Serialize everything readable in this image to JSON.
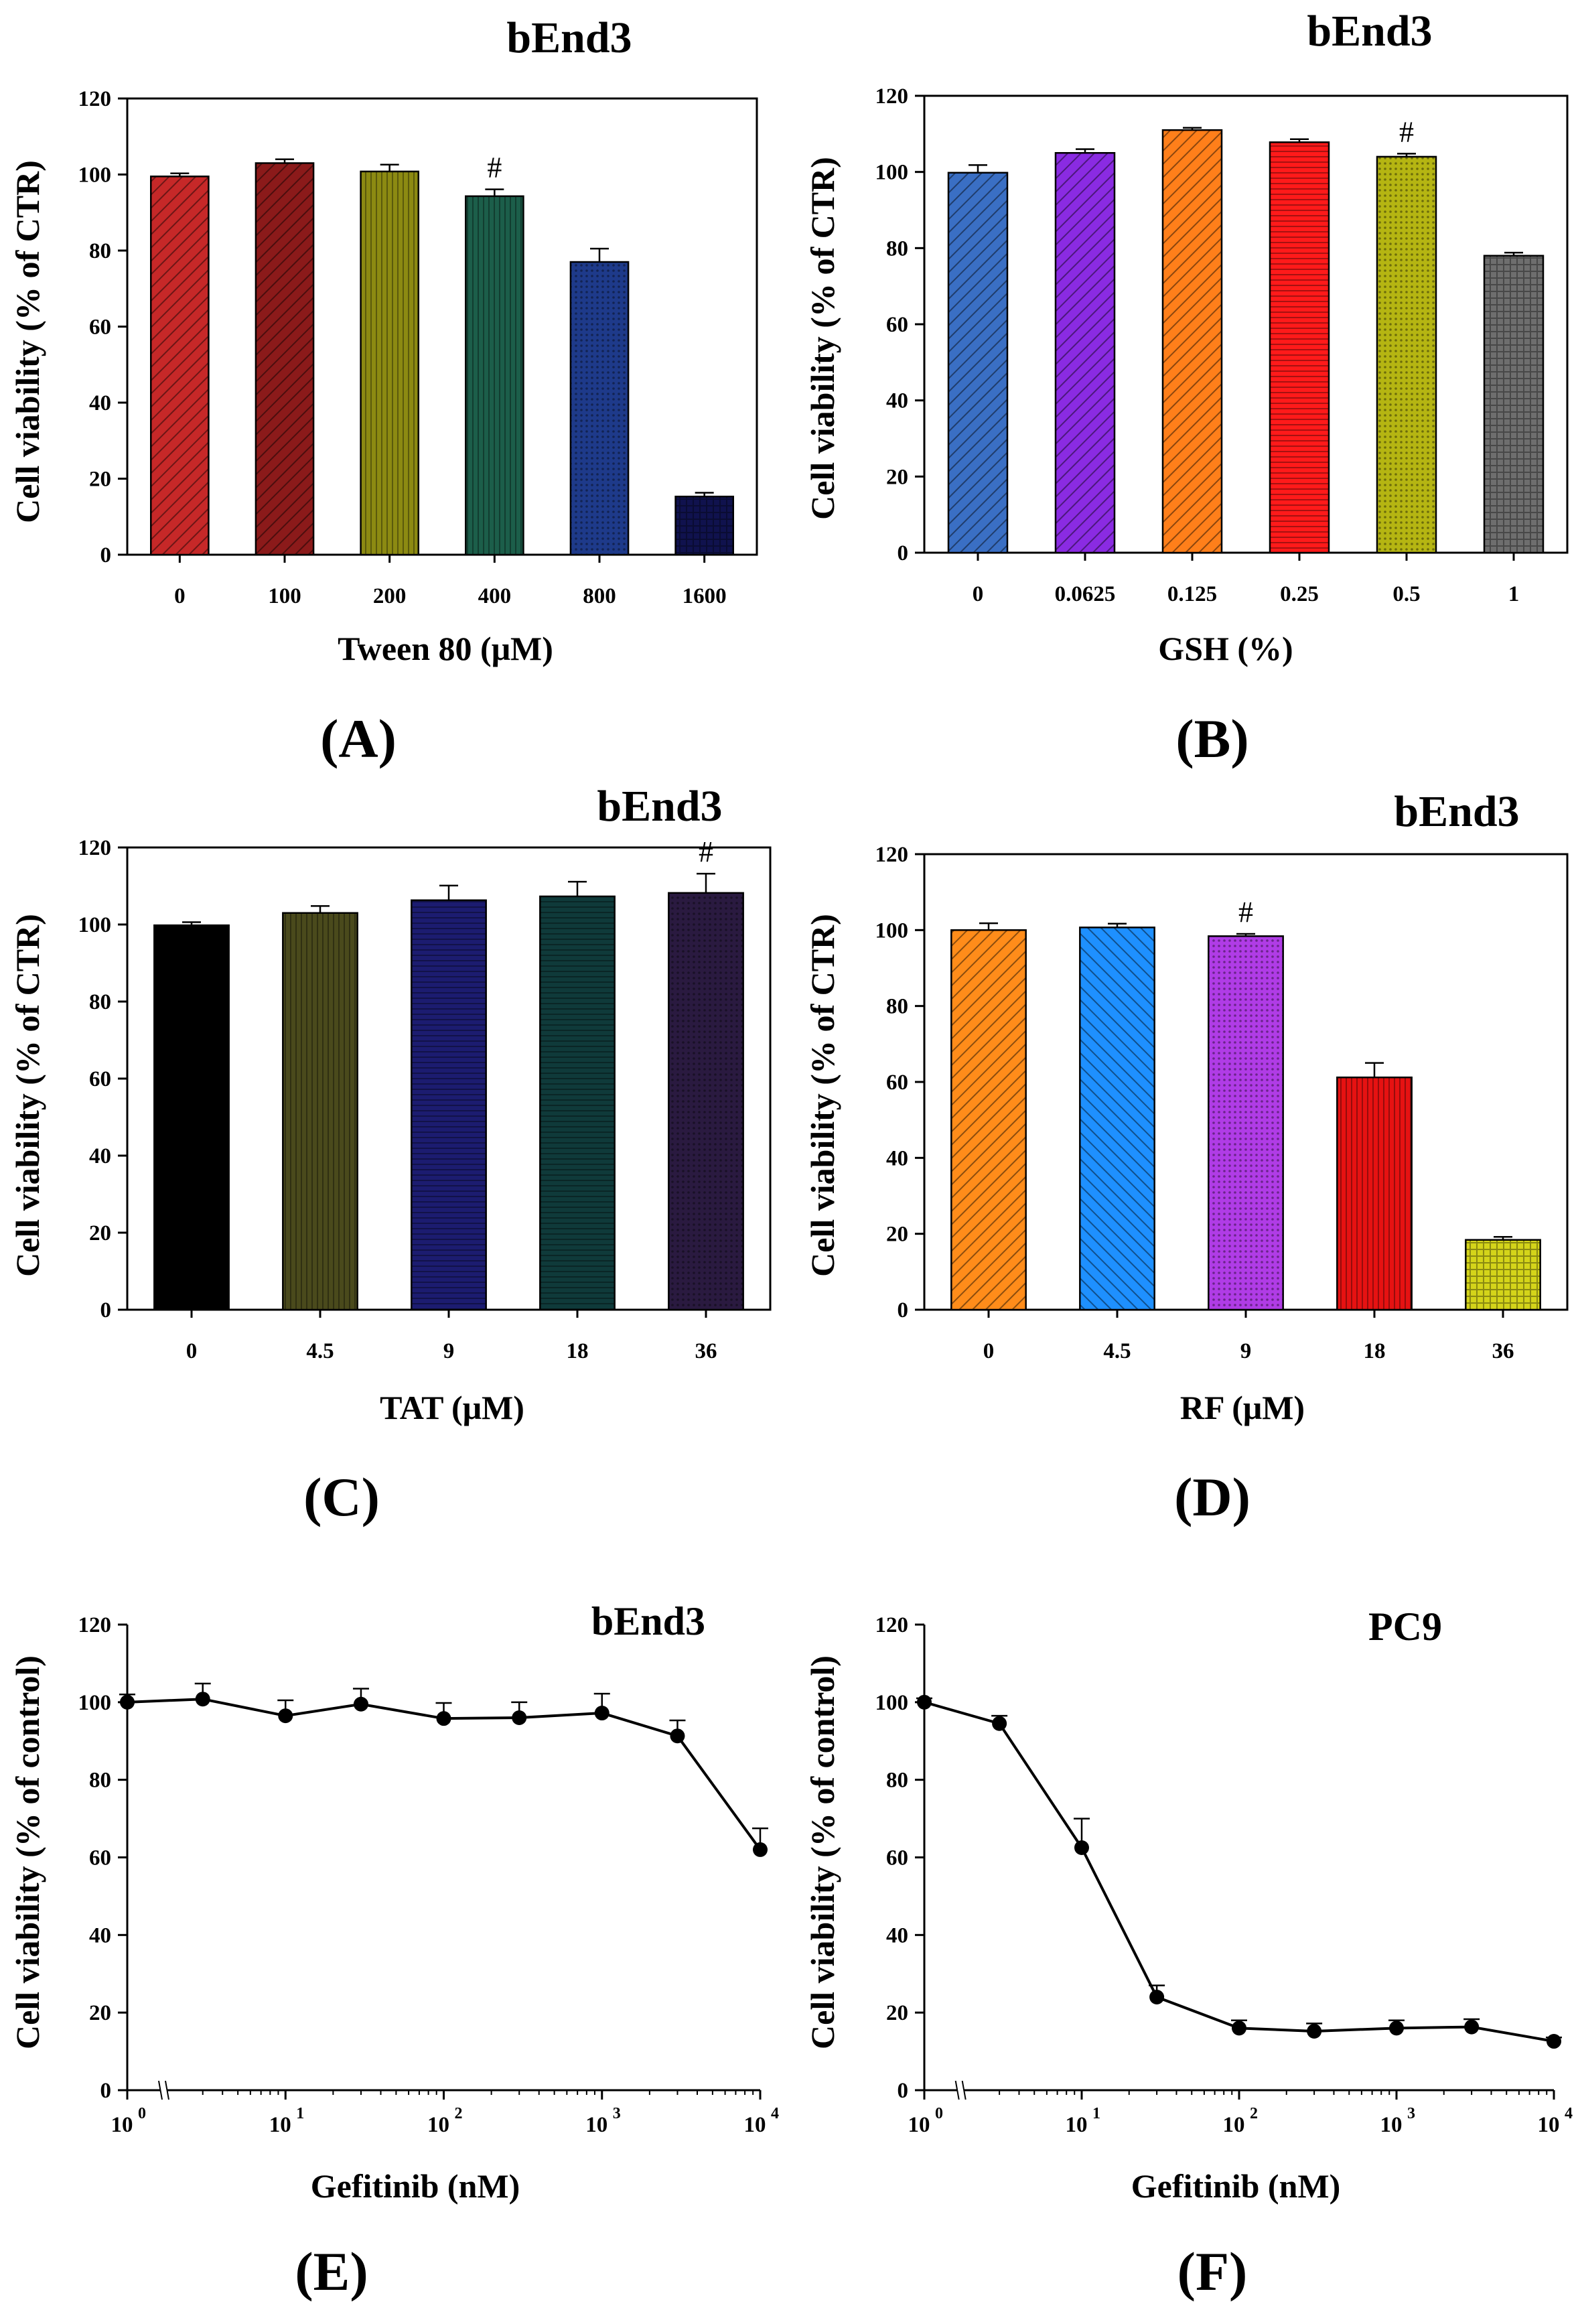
{
  "chart_data": [
    {
      "id": "A",
      "type": "bar",
      "title": "bEnd3",
      "panel_label": "(A)",
      "xlabel": "Tween 80  (μM)",
      "ylabel": "Cell viability (% of CTR)",
      "ylim": [
        0,
        120
      ],
      "yticks": [
        "0",
        "20",
        "40",
        "60",
        "80",
        "100",
        "120"
      ],
      "categories": [
        "0",
        "100",
        "200",
        "400",
        "800",
        "1600"
      ],
      "values": [
        99.5,
        103,
        100.8,
        94.3,
        77,
        15.3
      ],
      "errors": [
        0.8,
        1.0,
        1.8,
        1.8,
        3.5,
        1.0
      ],
      "colors": [
        "#c62828",
        "#8b1a1a",
        "#8c8a12",
        "#1c5e4a",
        "#1e3a8a",
        "#10124e"
      ],
      "annotations": [
        {
          "category": "400",
          "text": "#"
        }
      ]
    },
    {
      "id": "B",
      "type": "bar",
      "title": "bEnd3",
      "panel_label": "(B)",
      "xlabel": "GSH  (%)",
      "ylabel": "Cell viability (% of CTR)",
      "ylim": [
        0,
        120
      ],
      "yticks": [
        "0",
        "20",
        "40",
        "60",
        "80",
        "100",
        "120"
      ],
      "categories": [
        "0",
        "0.0625",
        "0.125",
        "0.25",
        "0.5",
        "1"
      ],
      "values": [
        99.8,
        105,
        111,
        107.8,
        104,
        78
      ],
      "errors": [
        2.0,
        1.0,
        0.6,
        0.8,
        0.8,
        0.8
      ],
      "colors": [
        "#3a6fc4",
        "#8a2be2",
        "#ff7f1a",
        "#ff1a1a",
        "#b5b512",
        "#6e6e6e"
      ],
      "annotations": [
        {
          "category": "0.5",
          "text": "#"
        }
      ]
    },
    {
      "id": "C",
      "type": "bar",
      "title": "bEnd3",
      "panel_label": "(C)",
      "xlabel": "TAT  (μM)",
      "ylabel": "Cell viability (% of CTR)",
      "ylim": [
        0,
        120
      ],
      "yticks": [
        "0",
        "20",
        "40",
        "60",
        "80",
        "100",
        "120"
      ],
      "categories": [
        "0",
        "4.5",
        "9",
        "18",
        "36"
      ],
      "values": [
        99.8,
        103,
        106.3,
        107.3,
        108.2
      ],
      "errors": [
        0.8,
        1.8,
        3.8,
        3.8,
        5.0
      ],
      "colors": [
        "#000000",
        "#4a4a1c",
        "#1c1c70",
        "#0f3a3a",
        "#2a1a40"
      ],
      "annotations": [
        {
          "category": "36",
          "text": "#"
        }
      ]
    },
    {
      "id": "D",
      "type": "bar",
      "title": "bEnd3",
      "panel_label": "(D)",
      "xlabel": "RF  (μM)",
      "ylabel": "Cell viability (% of CTR)",
      "ylim": [
        0,
        120
      ],
      "yticks": [
        "0",
        "20",
        "40",
        "60",
        "80",
        "100",
        "120"
      ],
      "categories": [
        "0",
        "4.5",
        "9",
        "18",
        "36"
      ],
      "values": [
        100,
        100.7,
        98.4,
        61.2,
        18.4
      ],
      "errors": [
        1.8,
        1.0,
        0.6,
        3.8,
        0.8
      ],
      "colors": [
        "#ff8c1a",
        "#1e90ff",
        "#b03ce6",
        "#e61212",
        "#d4d41a"
      ],
      "annotations": [
        {
          "category": "9",
          "text": "#"
        }
      ]
    },
    {
      "id": "E",
      "type": "line",
      "title": "bEnd3",
      "panel_label": "(E)",
      "xlabel": "Gefitinib (nM)",
      "ylabel": "Cell viability (% of control)",
      "ylim": [
        0,
        120
      ],
      "yticks": [
        "0",
        "20",
        "40",
        "60",
        "80",
        "100",
        "120"
      ],
      "xscale": "log",
      "xlim": [
        1,
        10000
      ],
      "xticks": [
        {
          "base": "10",
          "exp": "0"
        },
        {
          "base": "10",
          "exp": "1"
        },
        {
          "base": "10",
          "exp": "2"
        },
        {
          "base": "10",
          "exp": "3"
        },
        {
          "base": "10",
          "exp": "4"
        }
      ],
      "x": [
        1,
        3,
        10,
        30,
        100,
        300,
        1000,
        3000,
        10000
      ],
      "y": [
        100,
        100.8,
        96.5,
        99.5,
        95.8,
        96,
        97.2,
        91.3,
        62
      ],
      "errors": [
        2.0,
        4.0,
        4.0,
        4.0,
        4.0,
        4.0,
        5.0,
        4.0,
        5.5
      ]
    },
    {
      "id": "F",
      "type": "line",
      "title": "PC9",
      "panel_label": "(F)",
      "xlabel": "Gefitinib (nM)",
      "ylabel": "Cell viability (% of control)",
      "ylim": [
        0,
        120
      ],
      "yticks": [
        "0",
        "20",
        "40",
        "60",
        "80",
        "100",
        "120"
      ],
      "xscale": "log",
      "xlim": [
        1,
        10000
      ],
      "xticks": [
        {
          "base": "10",
          "exp": "0"
        },
        {
          "base": "10",
          "exp": "1"
        },
        {
          "base": "10",
          "exp": "2"
        },
        {
          "base": "10",
          "exp": "3"
        },
        {
          "base": "10",
          "exp": "4"
        }
      ],
      "x": [
        1,
        3,
        10,
        30,
        100,
        300,
        1000,
        3000,
        10000
      ],
      "y": [
        100,
        94.5,
        62.5,
        24,
        16,
        15.2,
        16,
        16.3,
        12.6
      ],
      "errors": [
        1.0,
        2.0,
        7.5,
        3.0,
        2.0,
        2.0,
        2.0,
        2.0,
        1.0
      ]
    }
  ]
}
